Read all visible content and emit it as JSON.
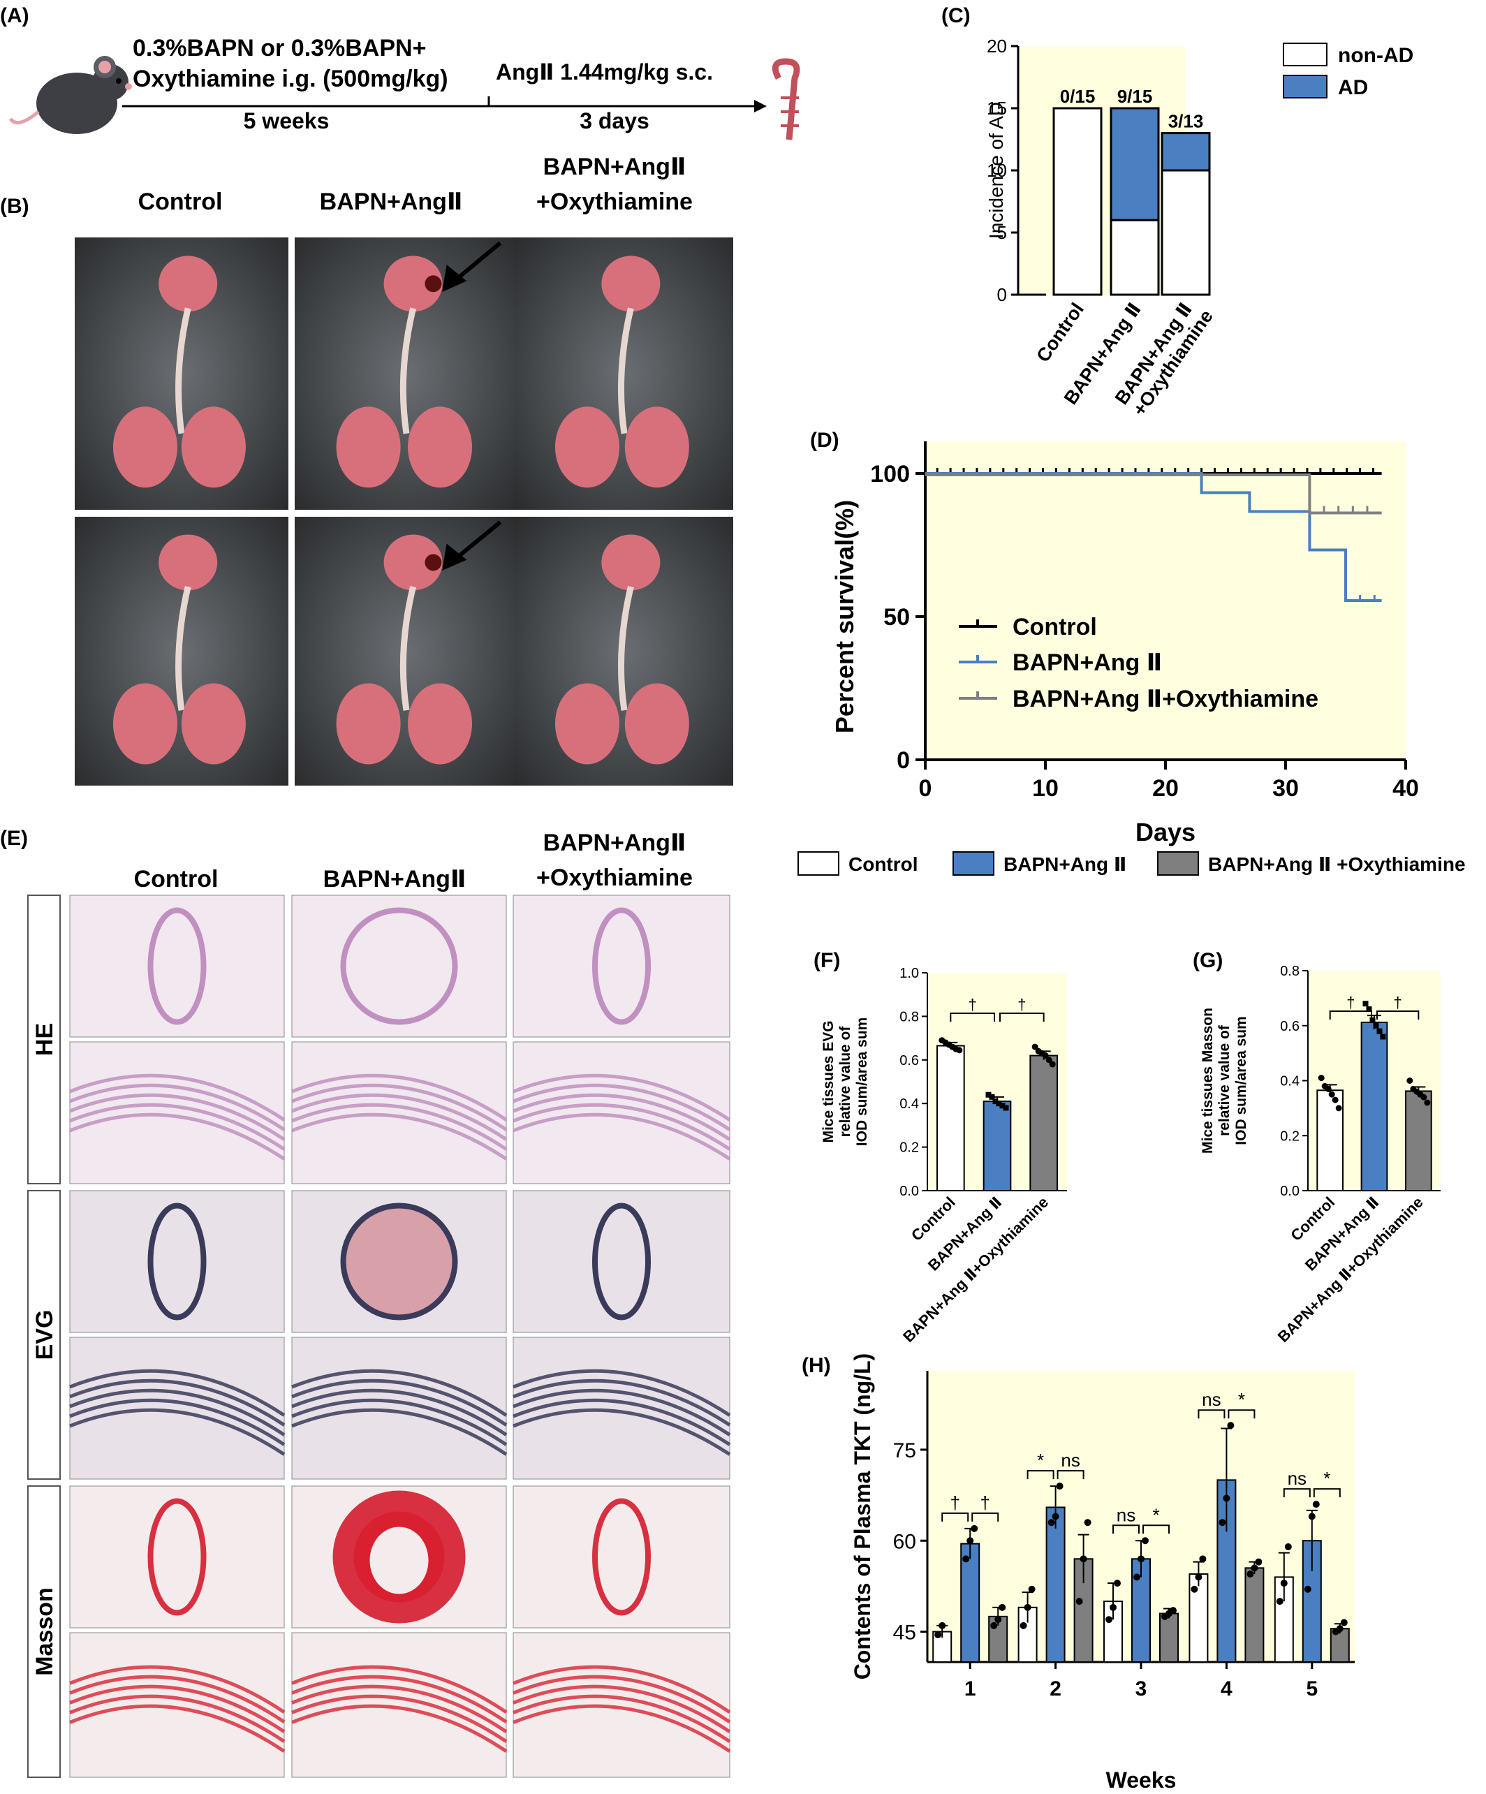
{
  "panel_labels": {
    "A": "(A)",
    "B": "(B)",
    "C": "(C)",
    "D": "(D)",
    "E": "(E)",
    "F": "(F)",
    "G": "(G)",
    "H": "(H)"
  },
  "protocol": {
    "line1": "0.3%BAPN or 0.3%BAPN+",
    "line2": "Oxythiamine i.g. (500mg/kg)",
    "duration1": "5 weeks",
    "angii": "AngⅡ 1.44mg/kg s.c.",
    "duration2": "3 days"
  },
  "groups_b": {
    "control": "Control",
    "bapn": "BAPN+AngⅡ",
    "oxy1": "BAPN+AngⅡ",
    "oxy2": "+Oxythiamine"
  },
  "groups_e": {
    "control": "Control",
    "bapn": "BAPN+AngⅡ",
    "oxy1": "BAPN+AngⅡ",
    "oxy2": "+Oxythiamine"
  },
  "stains": [
    "HE",
    "EVG",
    "Masson"
  ],
  "colors": {
    "control": "#ffffff",
    "bapn": "#4a7fc1",
    "oxy": "#7f7f7f",
    "bg": "#ffffe0",
    "photo_dark": "#3a3d40",
    "photo_organ": "#d8707c",
    "histo_bg": "#e8ecec"
  },
  "icons": [
    "mouse-icon",
    "aorta-icon",
    "arrow-icon"
  ],
  "chart_data": [
    {
      "id": "C",
      "type": "bar",
      "ylabel": "Incidence of AD",
      "ylim": [
        0,
        20
      ],
      "yticks": [
        0,
        5,
        10,
        15,
        20
      ],
      "categories": [
        "Control",
        "BAPN+Ang Ⅱ",
        "BAPN+Ang Ⅱ"
      ],
      "category_sub": [
        "",
        "",
        "+Oxythiamine"
      ],
      "series": [
        {
          "name": "non-AD",
          "values": [
            15,
            6,
            10
          ]
        },
        {
          "name": "AD",
          "values": [
            0,
            9,
            3
          ]
        }
      ],
      "annotations": [
        "0/15",
        "9/15",
        "3/13"
      ],
      "legend": "top-right"
    },
    {
      "id": "D",
      "type": "line",
      "ylabel": "Percent survival(%)",
      "xlabel": "Days",
      "xlim": [
        0,
        40
      ],
      "ylim": [
        0,
        100
      ],
      "xticks": [
        0,
        10,
        20,
        30,
        40
      ],
      "yticks": [
        0,
        50,
        100
      ],
      "series": [
        {
          "name": "Control",
          "x": [
            0,
            38
          ],
          "y": [
            100,
            100
          ]
        },
        {
          "name": "BAPN+Ang Ⅱ",
          "x": [
            0,
            23,
            27,
            32,
            35,
            38
          ],
          "y": [
            100,
            93.3,
            86.7,
            73.3,
            55.6,
            55.6
          ]
        },
        {
          "name": "BAPN+Ang Ⅱ+Oxythiamine",
          "x": [
            0,
            32,
            38
          ],
          "y": [
            100,
            86.7,
            86.7
          ]
        }
      ],
      "legend": "bottom-left"
    },
    {
      "id": "legend_FG",
      "type": "bar",
      "legend_items": [
        "Control",
        "BAPN+Ang Ⅱ",
        "BAPN+Ang Ⅱ +Oxythiamine"
      ]
    },
    {
      "id": "F",
      "type": "bar",
      "ylabel_lines": [
        "Mice tissues EVG",
        "relative value of",
        "IOD sum/area sum"
      ],
      "ylim": [
        0,
        1.0
      ],
      "yticks": [
        "0.0",
        "0.2",
        "0.4",
        "0.6",
        "0.8",
        "1.0"
      ],
      "categories": [
        "Control",
        "BAPN+Ang Ⅱ",
        "BAPN+Ang Ⅱ+Oxythiamine"
      ],
      "values": [
        0.665,
        0.41,
        0.62
      ],
      "errors": [
        0.015,
        0.02,
        0.02
      ],
      "points": [
        [
          0.69,
          0.68,
          0.67,
          0.66,
          0.65,
          0.645
        ],
        [
          0.44,
          0.43,
          0.41,
          0.4,
          0.39,
          0.38
        ],
        [
          0.66,
          0.64,
          0.63,
          0.62,
          0.6,
          0.58
        ]
      ],
      "sig": [
        "†",
        "†"
      ]
    },
    {
      "id": "G",
      "type": "bar",
      "ylabel_lines": [
        "Mice tissues Masson",
        "relative value of",
        "IOD sum/area sum"
      ],
      "ylim": [
        0,
        0.8
      ],
      "yticks": [
        "0.0",
        "0.2",
        "0.4",
        "0.6",
        "0.8"
      ],
      "categories": [
        "Control",
        "BAPN+Ang Ⅱ",
        "BAPN+Ang Ⅱ+Oxythiamine"
      ],
      "values": [
        0.365,
        0.612,
        0.362
      ],
      "errors": [
        0.02,
        0.025,
        0.015
      ],
      "points": [
        [
          0.41,
          0.38,
          0.37,
          0.35,
          0.33,
          0.3
        ],
        [
          0.68,
          0.66,
          0.62,
          0.6,
          0.58,
          0.56
        ],
        [
          0.4,
          0.37,
          0.36,
          0.35,
          0.34,
          0.32
        ]
      ],
      "sig": [
        "†",
        "†"
      ]
    },
    {
      "id": "H",
      "type": "bar",
      "ylabel": "Contents of Plasma TKT (ng/L)",
      "xlabel": "Weeks",
      "ylim": [
        40,
        88
      ],
      "yticks": [
        45,
        60,
        75
      ],
      "categories": [
        "1",
        "2",
        "3",
        "4",
        "5"
      ],
      "series": [
        {
          "name": "Control",
          "values": [
            45,
            49,
            50,
            54.5,
            54
          ]
        },
        {
          "name": "BAPN+Ang Ⅱ",
          "values": [
            59.5,
            65.5,
            57,
            70,
            60
          ]
        },
        {
          "name": "BAPN+Ang Ⅱ+Oxythiamine",
          "values": [
            47.5,
            57,
            48,
            55.5,
            45.5
          ]
        }
      ],
      "errors": [
        [
          1,
          2.5,
          3,
          2,
          4
        ],
        [
          2.5,
          3.5,
          3,
          8.5,
          5
        ],
        [
          1.5,
          4,
          0.8,
          1,
          0.8
        ]
      ],
      "points": [
        [
          [
            44.5,
            46
          ],
          [
            46,
            49,
            52
          ],
          [
            47,
            49,
            53
          ],
          [
            52,
            54,
            57
          ],
          [
            50,
            53,
            59
          ]
        ],
        [
          [
            57,
            60,
            62
          ],
          [
            63,
            64,
            69
          ],
          [
            54,
            57,
            60
          ],
          [
            63,
            67,
            79
          ],
          [
            52,
            64,
            66
          ]
        ],
        [
          [
            46,
            47,
            49
          ],
          [
            50,
            57,
            63
          ],
          [
            47.5,
            48,
            48.5
          ],
          [
            54.5,
            55.5,
            56.5
          ],
          [
            45,
            45.5,
            46.5
          ]
        ]
      ],
      "sig": [
        [
          "†",
          "†"
        ],
        [
          "*",
          "ns"
        ],
        [
          "ns",
          "*"
        ],
        [
          "ns",
          "*"
        ],
        [
          "ns",
          "*"
        ]
      ]
    }
  ]
}
